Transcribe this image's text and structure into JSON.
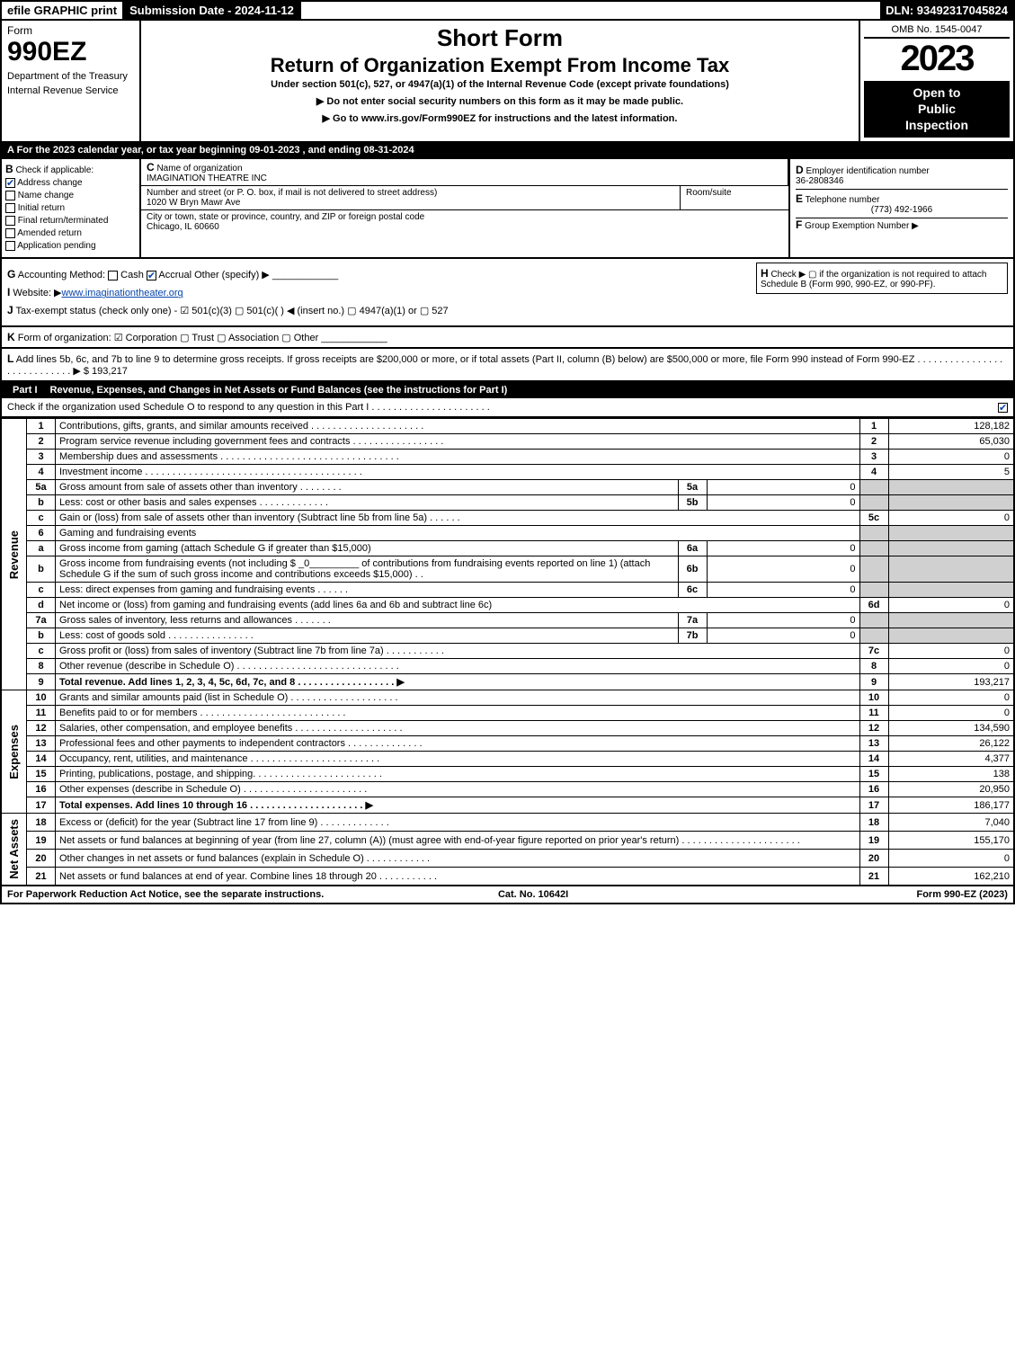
{
  "topbar": {
    "efile": "efile GRAPHIC print",
    "submission_label": "Submission Date - 2024-11-12",
    "dln": "DLN: 93492317045824"
  },
  "header": {
    "form_label": "Form",
    "form_number": "990EZ",
    "dept1": "Department of the Treasury",
    "dept2": "Internal Revenue Service",
    "title_short": "Short Form",
    "title_main": "Return of Organization Exempt From Income Tax",
    "subtitle": "Under section 501(c), 527, or 4947(a)(1) of the Internal Revenue Code (except private foundations)",
    "instr1": "▶ Do not enter social security numbers on this form as it may be made public.",
    "instr2": "▶ Go to www.irs.gov/Form990EZ for instructions and the latest information.",
    "omb": "OMB No. 1545-0047",
    "year": "2023",
    "open1": "Open to",
    "open2": "Public",
    "open3": "Inspection"
  },
  "section_a": "A  For the 2023 calendar year, or tax year beginning 09-01-2023 , and ending 08-31-2024",
  "section_b": {
    "header": "Check if applicable:",
    "items": [
      "Address change",
      "Name change",
      "Initial return",
      "Final return/terminated",
      "Amended return",
      "Application pending"
    ],
    "checked_index": 0
  },
  "section_c": {
    "label": "Name of organization",
    "value": "IMAGINATION THEATRE INC",
    "street_label": "Number and street (or P. O. box, if mail is not delivered to street address)",
    "street_value": "1020 W Bryn Mawr Ave",
    "room_label": "Room/suite",
    "city_label": "City or town, state or province, country, and ZIP or foreign postal code",
    "city_value": "Chicago, IL  60660"
  },
  "section_d": {
    "label": "Employer identification number",
    "value": "36-2808346"
  },
  "section_e": {
    "label": "Telephone number",
    "value": "(773) 492-1966"
  },
  "section_f": {
    "label": "Group Exemption Number   ▶",
    "value": ""
  },
  "section_g": {
    "label": "Accounting Method:",
    "cash": "Cash",
    "accrual": "Accrual",
    "other": "Other (specify) ▶",
    "accrual_checked": true
  },
  "section_h": "Check ▶  ▢  if the organization is not required to attach Schedule B (Form 990, 990-EZ, or 990-PF).",
  "section_i": {
    "label": "Website: ▶",
    "value": "www.imaginationtheater.org"
  },
  "section_j": "Tax-exempt status (check only one) - ☑ 501(c)(3)  ▢ 501(c)(  ) ◀ (insert no.)  ▢ 4947(a)(1) or  ▢ 527",
  "section_k": "Form of organization:  ☑ Corporation  ▢ Trust  ▢ Association  ▢ Other",
  "section_l": {
    "text": "Add lines 5b, 6c, and 7b to line 9 to determine gross receipts. If gross receipts are $200,000 or more, or if total assets (Part II, column (B) below) are $500,000 or more, file Form 990 instead of Form 990-EZ . . . . . . . . . . . . . . . . . . . . . . . . . . . . ▶ $ ",
    "amount": "193,217"
  },
  "part1": {
    "label": "Part I",
    "title": "Revenue, Expenses, and Changes in Net Assets or Fund Balances (see the instructions for Part I)",
    "check_text": "Check if the organization used Schedule O to respond to any question in this Part I . . . . . . . . . . . . . . . . . . . . . .",
    "checked": true
  },
  "groups": {
    "revenue": "Revenue",
    "expenses": "Expenses",
    "netassets": "Net Assets"
  },
  "lines": {
    "l1": {
      "n": "1",
      "text": "Contributions, gifts, grants, and similar amounts received . . . . . . . . . . . . . . . . . . . . .",
      "rn": "1",
      "amt": "128,182"
    },
    "l2": {
      "n": "2",
      "text": "Program service revenue including government fees and contracts . . . . . . . . . . . . . . . . .",
      "rn": "2",
      "amt": "65,030"
    },
    "l3": {
      "n": "3",
      "text": "Membership dues and assessments . . . . . . . . . . . . . . . . . . . . . . . . . . . . . . . . .",
      "rn": "3",
      "amt": "0"
    },
    "l4": {
      "n": "4",
      "text": "Investment income . . . . . . . . . . . . . . . . . . . . . . . . . . . . . . . . . . . . . . . .",
      "rn": "4",
      "amt": "5"
    },
    "l5a": {
      "n": "5a",
      "text": "Gross amount from sale of assets other than inventory . . . . . . . .",
      "sub": "5a",
      "subamt": "0"
    },
    "l5b": {
      "n": "b",
      "text": "Less: cost or other basis and sales expenses . . . . . . . . . . . . .",
      "sub": "5b",
      "subamt": "0"
    },
    "l5c": {
      "n": "c",
      "text": "Gain or (loss) from sale of assets other than inventory (Subtract line 5b from line 5a) . . . . . .",
      "rn": "5c",
      "amt": "0"
    },
    "l6": {
      "n": "6",
      "text": "Gaming and fundraising events"
    },
    "l6a": {
      "n": "a",
      "text": "Gross income from gaming (attach Schedule G if greater than $15,000)",
      "sub": "6a",
      "subamt": "0"
    },
    "l6b": {
      "n": "b",
      "text": "Gross income from fundraising events (not including $ _0_________ of contributions from fundraising events reported on line 1) (attach Schedule G if the sum of such gross income and contributions exceeds $15,000)   .  .",
      "sub": "6b",
      "subamt": "0"
    },
    "l6c": {
      "n": "c",
      "text": "Less: direct expenses from gaming and fundraising events . . . . . .",
      "sub": "6c",
      "subamt": "0"
    },
    "l6d": {
      "n": "d",
      "text": "Net income or (loss) from gaming and fundraising events (add lines 6a and 6b and subtract line 6c)",
      "rn": "6d",
      "amt": "0"
    },
    "l7a": {
      "n": "7a",
      "text": "Gross sales of inventory, less returns and allowances . . . . . . .",
      "sub": "7a",
      "subamt": "0"
    },
    "l7b": {
      "n": "b",
      "text": "Less: cost of goods sold      . . . . . . . . . . . . . . . .",
      "sub": "7b",
      "subamt": "0"
    },
    "l7c": {
      "n": "c",
      "text": "Gross profit or (loss) from sales of inventory (Subtract line 7b from line 7a) . . . . . . . . . . .",
      "rn": "7c",
      "amt": "0"
    },
    "l8": {
      "n": "8",
      "text": "Other revenue (describe in Schedule O) . . . . . . . . . . . . . . . . . . . . . . . . . . . . . .",
      "rn": "8",
      "amt": "0"
    },
    "l9": {
      "n": "9",
      "text": "Total revenue. Add lines 1, 2, 3, 4, 5c, 6d, 7c, and 8 . . . . . . . . . . . . . . . . . .  ▶",
      "rn": "9",
      "amt": "193,217",
      "bold": true
    },
    "l10": {
      "n": "10",
      "text": "Grants and similar amounts paid (list in Schedule O) . . . . . . . . . . . . . . . . . . . .",
      "rn": "10",
      "amt": "0"
    },
    "l11": {
      "n": "11",
      "text": "Benefits paid to or for members      . . . . . . . . . . . . . . . . . . . . . . . . . . .",
      "rn": "11",
      "amt": "0"
    },
    "l12": {
      "n": "12",
      "text": "Salaries, other compensation, and employee benefits . . . . . . . . . . . . . . . . . . . .",
      "rn": "12",
      "amt": "134,590"
    },
    "l13": {
      "n": "13",
      "text": "Professional fees and other payments to independent contractors . . . . . . . . . . . . . .",
      "rn": "13",
      "amt": "26,122"
    },
    "l14": {
      "n": "14",
      "text": "Occupancy, rent, utilities, and maintenance . . . . . . . . . . . . . . . . . . . . . . . .",
      "rn": "14",
      "amt": "4,377"
    },
    "l15": {
      "n": "15",
      "text": "Printing, publications, postage, and shipping. . . . . . . . . . . . . . . . . . . . . . . .",
      "rn": "15",
      "amt": "138"
    },
    "l16": {
      "n": "16",
      "text": "Other expenses (describe in Schedule O)     . . . . . . . . . . . . . . . . . . . . . . .",
      "rn": "16",
      "amt": "20,950"
    },
    "l17": {
      "n": "17",
      "text": "Total expenses. Add lines 10 through 16     . . . . . . . . . . . . . . . . . . . . .  ▶",
      "rn": "17",
      "amt": "186,177",
      "bold": true
    },
    "l18": {
      "n": "18",
      "text": "Excess or (deficit) for the year (Subtract line 17 from line 9)       . . . . . . . . . . . . .",
      "rn": "18",
      "amt": "7,040"
    },
    "l19": {
      "n": "19",
      "text": "Net assets or fund balances at beginning of year (from line 27, column (A)) (must agree with end-of-year figure reported on prior year's return) . . . . . . . . . . . . . . . . . . . . . .",
      "rn": "19",
      "amt": "155,170"
    },
    "l20": {
      "n": "20",
      "text": "Other changes in net assets or fund balances (explain in Schedule O) . . . . . . . . . . . .",
      "rn": "20",
      "amt": "0"
    },
    "l21": {
      "n": "21",
      "text": "Net assets or fund balances at end of year. Combine lines 18 through 20 . . . . . . . . . . .",
      "rn": "21",
      "amt": "162,210"
    }
  },
  "footer": {
    "left": "For Paperwork Reduction Act Notice, see the separate instructions.",
    "mid": "Cat. No. 10642I",
    "right": "Form 990-EZ (2023)"
  },
  "colors": {
    "black": "#000000",
    "white": "#ffffff",
    "gray": "#d0d0d0",
    "link": "#0645ad"
  }
}
